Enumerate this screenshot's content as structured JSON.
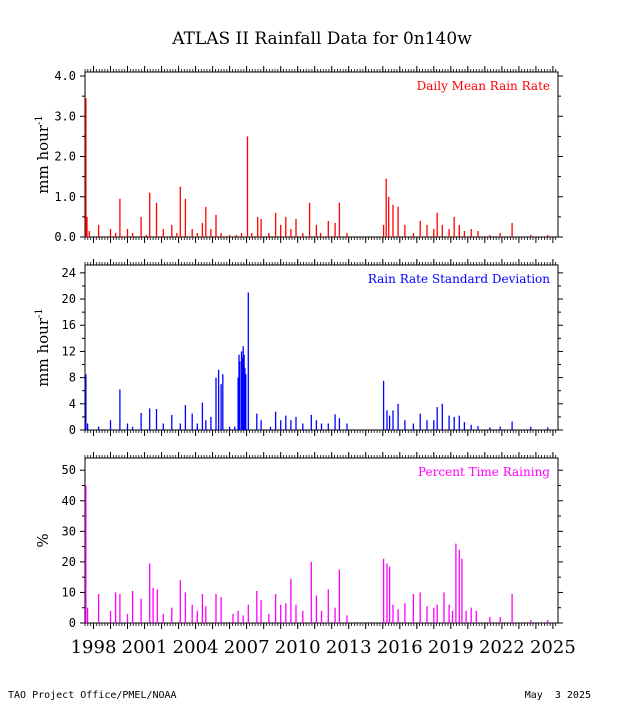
{
  "title": "ATLAS II Rainfall Data for 0n140w",
  "footer": {
    "left": "TAO Project Office/PMEL/NOAA",
    "right": "May  3 2025"
  },
  "x_axis": {
    "range": [
      1997.5,
      2025.3
    ],
    "ticks": [
      "1998",
      "2001",
      "2004",
      "2007",
      "2010",
      "2013",
      "2016",
      "2019",
      "2022",
      "2025"
    ]
  },
  "colors": {
    "panel1": "#ff0000",
    "panel2": "#0000ff",
    "panel3": "#ff00ff",
    "text": "#000000"
  },
  "chart_data": [
    {
      "type": "bar",
      "label": "Daily Mean Rain Rate",
      "ylabel": "mm hour",
      "ylabel_superscript": "-1",
      "ylim": [
        0,
        4.1
      ],
      "yticks": [
        "0.0",
        "1.0",
        "2.0",
        "3.0",
        "4.0"
      ],
      "ytick_values": [
        0,
        1,
        2,
        3,
        4
      ],
      "color": "#ff0000",
      "x": [
        1997.55,
        1997.62,
        1997.75,
        1998.3,
        1999.0,
        1999.3,
        1999.55,
        2000.0,
        2000.3,
        2000.8,
        2001.1,
        2001.3,
        2001.7,
        2002.1,
        2002.6,
        2002.9,
        2003.1,
        2003.4,
        2003.8,
        2004.1,
        2004.4,
        2004.6,
        2004.9,
        2005.2,
        2005.5,
        2006.0,
        2006.4,
        2006.7,
        2007.05,
        2007.3,
        2007.65,
        2007.85,
        2008.3,
        2008.7,
        2009.0,
        2009.3,
        2009.6,
        2009.9,
        2010.3,
        2010.7,
        2011.1,
        2011.35,
        2011.8,
        2012.2,
        2012.45,
        2012.9,
        2015.05,
        2015.2,
        2015.35,
        2015.6,
        2015.9,
        2016.3,
        2016.8,
        2017.2,
        2017.6,
        2018.0,
        2018.2,
        2018.5,
        2018.9,
        2019.2,
        2019.5,
        2019.8,
        2020.2,
        2020.6,
        2021.3,
        2021.9,
        2022.6,
        2023.7,
        2024.7
      ],
      "values": [
        3.45,
        0.5,
        0.15,
        0.3,
        0.2,
        0.1,
        0.95,
        0.2,
        0.1,
        0.5,
        0.05,
        1.1,
        0.85,
        0.2,
        0.3,
        0.1,
        1.25,
        0.95,
        0.2,
        0.1,
        0.35,
        0.75,
        0.2,
        0.55,
        0.1,
        0.05,
        0.05,
        0.1,
        2.5,
        0.1,
        0.5,
        0.45,
        0.1,
        0.6,
        0.3,
        0.5,
        0.2,
        0.45,
        0.1,
        0.85,
        0.3,
        0.1,
        0.4,
        0.35,
        0.85,
        0.1,
        0.3,
        1.45,
        1.0,
        0.8,
        0.75,
        0.3,
        0.1,
        0.4,
        0.3,
        0.2,
        0.6,
        0.3,
        0.2,
        0.5,
        0.3,
        0.15,
        0.2,
        0.15,
        0.05,
        0.1,
        0.35,
        0.05,
        0.05
      ]
    },
    {
      "type": "bar",
      "label": "Rain Rate Standard Deviation",
      "ylabel": "mm hour",
      "ylabel_superscript": "-1",
      "ylim": [
        0,
        25.2
      ],
      "yticks": [
        "0",
        "4",
        "8",
        "12",
        "16",
        "20",
        "24"
      ],
      "ytick_values": [
        0,
        4,
        8,
        12,
        16,
        20,
        24
      ],
      "color": "#0000ff",
      "x": [
        1997.55,
        1997.65,
        1998.3,
        1999.0,
        1999.55,
        2000.0,
        2000.3,
        2000.8,
        2001.3,
        2001.7,
        2002.1,
        2002.6,
        2003.1,
        2003.4,
        2003.8,
        2004.1,
        2004.4,
        2004.6,
        2004.9,
        2005.2,
        2005.35,
        2005.5,
        2005.6,
        2006.0,
        2006.3,
        2006.5,
        2006.55,
        2006.6,
        2006.7,
        2006.75,
        2006.8,
        2006.85,
        2006.9,
        2006.95,
        2007.1,
        2007.6,
        2007.85,
        2008.4,
        2008.7,
        2009.0,
        2009.3,
        2009.6,
        2009.9,
        2010.3,
        2010.8,
        2011.1,
        2011.4,
        2011.8,
        2012.2,
        2012.45,
        2012.9,
        2015.05,
        2015.25,
        2015.4,
        2015.6,
        2015.9,
        2016.3,
        2016.8,
        2017.2,
        2017.6,
        2018.0,
        2018.2,
        2018.5,
        2018.9,
        2019.2,
        2019.5,
        2019.8,
        2020.2,
        2020.6,
        2021.3,
        2021.9,
        2022.6,
        2023.7,
        2024.7
      ],
      "values": [
        8.5,
        1.0,
        0.5,
        1.5,
        6.2,
        1.0,
        0.5,
        2.6,
        3.3,
        3.2,
        1.0,
        2.3,
        1.0,
        3.8,
        2.5,
        1.0,
        4.2,
        1.5,
        2.0,
        8.0,
        9.2,
        7.0,
        8.5,
        0.5,
        0.5,
        8.0,
        11.5,
        10.5,
        12.0,
        11.0,
        12.8,
        11.5,
        9.5,
        8.5,
        21.0,
        2.5,
        1.5,
        0.5,
        2.8,
        1.5,
        2.2,
        1.5,
        2.0,
        1.0,
        2.3,
        1.5,
        1.0,
        1.0,
        2.4,
        1.8,
        1.0,
        7.5,
        3.0,
        2.2,
        3.0,
        4.0,
        1.5,
        1.0,
        2.5,
        1.5,
        1.5,
        3.5,
        4.0,
        2.2,
        2.0,
        2.2,
        1.2,
        0.8,
        0.6,
        0.4,
        0.5,
        1.3,
        0.5,
        0.4
      ]
    },
    {
      "type": "bar",
      "label": "Percent Time Raining",
      "ylabel": "%",
      "ylabel_superscript": "",
      "ylim": [
        0,
        54
      ],
      "yticks": [
        "0",
        "10",
        "20",
        "30",
        "40",
        "50"
      ],
      "ytick_values": [
        0,
        10,
        20,
        30,
        40,
        50
      ],
      "color": "#ff00ff",
      "x": [
        1997.55,
        1997.65,
        1998.3,
        1999.0,
        1999.3,
        1999.55,
        2000.0,
        2000.3,
        2000.8,
        2001.3,
        2001.5,
        2001.75,
        2002.1,
        2002.6,
        2003.1,
        2003.4,
        2003.8,
        2004.1,
        2004.4,
        2004.6,
        2005.2,
        2005.5,
        2006.2,
        2006.5,
        2006.8,
        2007.1,
        2007.6,
        2007.85,
        2008.3,
        2008.7,
        2009.0,
        2009.3,
        2009.6,
        2009.9,
        2010.3,
        2010.8,
        2011.1,
        2011.4,
        2011.8,
        2012.2,
        2012.45,
        2012.9,
        2015.05,
        2015.25,
        2015.4,
        2015.6,
        2015.9,
        2016.3,
        2016.8,
        2017.2,
        2017.6,
        2018.0,
        2018.2,
        2018.6,
        2018.9,
        2019.1,
        2019.3,
        2019.5,
        2019.65,
        2019.9,
        2020.2,
        2020.5,
        2021.3,
        2021.9,
        2022.6,
        2023.7,
        2024.7
      ],
      "values": [
        45.0,
        5.0,
        9.5,
        4.0,
        10.0,
        9.5,
        3.0,
        10.5,
        8.0,
        19.5,
        11.5,
        11.0,
        3.0,
        5.0,
        14.0,
        10.0,
        6.0,
        4.0,
        9.5,
        5.5,
        9.5,
        8.5,
        3.0,
        4.0,
        2.5,
        6.0,
        10.5,
        7.5,
        3.0,
        9.5,
        6.0,
        6.5,
        14.5,
        6.0,
        4.0,
        20.0,
        9.0,
        4.0,
        11.0,
        5.0,
        17.5,
        2.5,
        21.0,
        19.5,
        18.5,
        6.0,
        4.5,
        6.5,
        9.5,
        10.0,
        5.5,
        5.0,
        6.0,
        10.0,
        6.0,
        4.0,
        26.0,
        24.0,
        21.0,
        4.0,
        5.0,
        4.0,
        2.0,
        2.0,
        9.5,
        1.0,
        1.0
      ]
    }
  ]
}
